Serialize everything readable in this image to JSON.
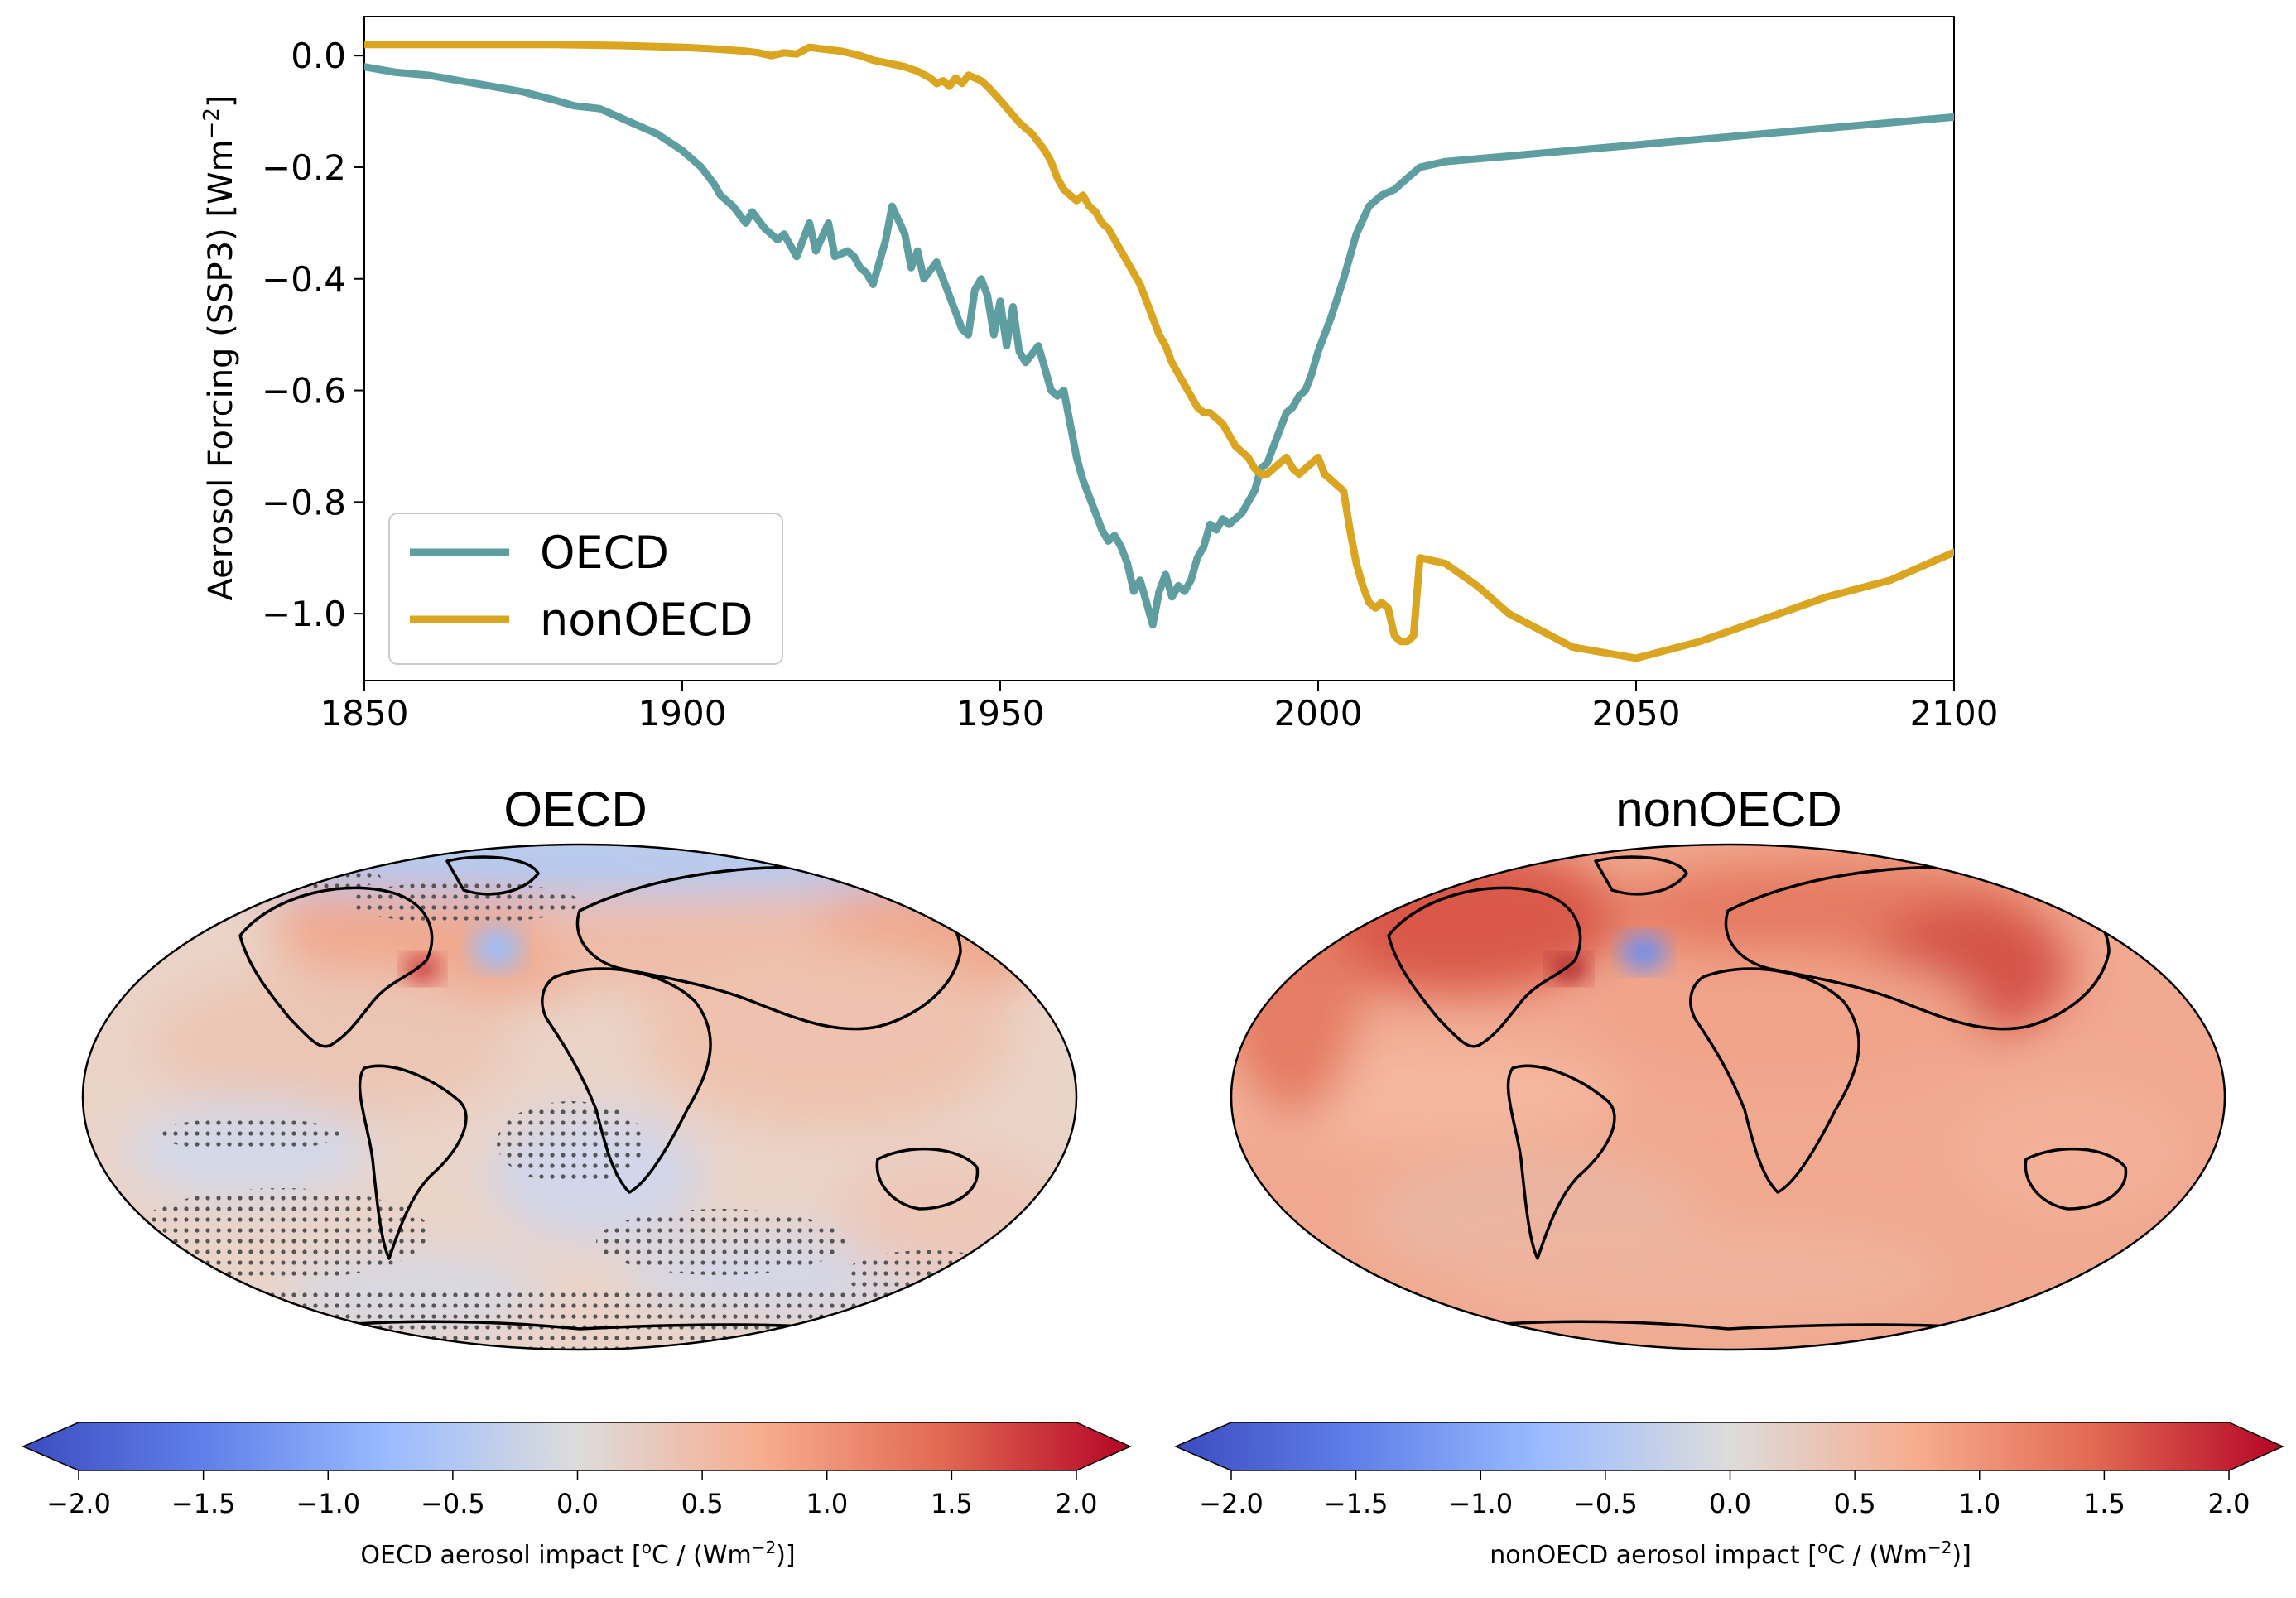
{
  "chart_data": [
    {
      "type": "line",
      "title": "",
      "xlabel": "",
      "ylabel": "Aerosol Forcing  (SSP3)  [Wm",
      "ylabel_sup": "−2",
      "ylabel_end": "]",
      "xlim": [
        1850,
        2100
      ],
      "ylim": [
        -1.12,
        0.07
      ],
      "x_ticks": [
        1850,
        1900,
        1950,
        2000,
        2050,
        2100
      ],
      "x_tick_labels": [
        "1850",
        "1900",
        "1950",
        "2000",
        "2050",
        "2100"
      ],
      "y_ticks": [
        0.0,
        -0.2,
        -0.4,
        -0.6,
        -0.8,
        -1.0
      ],
      "y_tick_labels": [
        "0.0",
        "−0.2",
        "−0.4",
        "−0.6",
        "−0.8",
        "−1.0"
      ],
      "grid": false,
      "legend": "lower-left",
      "series": [
        {
          "name": "OECD",
          "color": "#5f9ea0",
          "x": [
            1850,
            1855,
            1860,
            1865,
            1870,
            1875,
            1880,
            1883,
            1887,
            1890,
            1893,
            1896,
            1900,
            1903,
            1905,
            1906,
            1908,
            1910,
            1911,
            1913,
            1915,
            1916,
            1918,
            1919,
            1920,
            1921,
            1923,
            1924,
            1926,
            1927,
            1928,
            1929,
            1930,
            1932,
            1933,
            1935,
            1936,
            1937,
            1938,
            1940,
            1941,
            1943,
            1944,
            1945,
            1946,
            1947,
            1948,
            1949,
            1950,
            1951,
            1952,
            1953,
            1954,
            1956,
            1957,
            1958,
            1959,
            1960,
            1961,
            1962,
            1963,
            1964,
            1965,
            1966,
            1967,
            1968,
            1969,
            1970,
            1971,
            1972,
            1973,
            1974,
            1975,
            1976,
            1977,
            1978,
            1979,
            1980,
            1981,
            1982,
            1983,
            1984,
            1985,
            1986,
            1987,
            1988,
            1989,
            1990,
            1991,
            1992,
            1993,
            1994,
            1995,
            1996,
            1997,
            1998,
            1999,
            2000,
            2002,
            2004,
            2006,
            2008,
            2010,
            2012,
            2014,
            2016,
            2020,
            2030,
            2040,
            2050,
            2060,
            2070,
            2080,
            2090,
            2100
          ],
          "y": [
            -0.02,
            -0.03,
            -0.035,
            -0.045,
            -0.055,
            -0.065,
            -0.08,
            -0.09,
            -0.095,
            -0.11,
            -0.125,
            -0.14,
            -0.17,
            -0.2,
            -0.23,
            -0.25,
            -0.27,
            -0.3,
            -0.28,
            -0.31,
            -0.33,
            -0.32,
            -0.36,
            -0.33,
            -0.3,
            -0.35,
            -0.3,
            -0.36,
            -0.35,
            -0.36,
            -0.38,
            -0.39,
            -0.41,
            -0.33,
            -0.27,
            -0.32,
            -0.38,
            -0.35,
            -0.4,
            -0.37,
            -0.4,
            -0.46,
            -0.49,
            -0.5,
            -0.42,
            -0.4,
            -0.43,
            -0.5,
            -0.44,
            -0.52,
            -0.45,
            -0.53,
            -0.55,
            -0.52,
            -0.56,
            -0.6,
            -0.61,
            -0.6,
            -0.66,
            -0.72,
            -0.76,
            -0.79,
            -0.82,
            -0.85,
            -0.87,
            -0.86,
            -0.88,
            -0.91,
            -0.96,
            -0.94,
            -0.98,
            -1.02,
            -0.96,
            -0.93,
            -0.97,
            -0.95,
            -0.96,
            -0.94,
            -0.9,
            -0.88,
            -0.84,
            -0.85,
            -0.83,
            -0.84,
            -0.83,
            -0.82,
            -0.8,
            -0.78,
            -0.74,
            -0.73,
            -0.7,
            -0.67,
            -0.64,
            -0.63,
            -0.61,
            -0.6,
            -0.57,
            -0.53,
            -0.47,
            -0.4,
            -0.32,
            -0.27,
            -0.25,
            -0.24,
            -0.22,
            -0.2,
            -0.19,
            -0.18,
            -0.17,
            -0.16,
            -0.15,
            -0.14,
            -0.13,
            -0.12,
            -0.11
          ]
        },
        {
          "name": "nonOECD",
          "color": "#daa520",
          "x": [
            1850,
            1860,
            1870,
            1880,
            1890,
            1900,
            1905,
            1910,
            1912,
            1914,
            1916,
            1918,
            1920,
            1922,
            1925,
            1928,
            1930,
            1933,
            1935,
            1937,
            1939,
            1940,
            1941,
            1942,
            1943,
            1944,
            1945,
            1946,
            1947,
            1948,
            1950,
            1953,
            1955,
            1957,
            1958,
            1959,
            1960,
            1961,
            1962,
            1963,
            1964,
            1965,
            1966,
            1967,
            1968,
            1970,
            1972,
            1973,
            1974,
            1975,
            1976,
            1977,
            1978,
            1979,
            1980,
            1981,
            1982,
            1983,
            1984,
            1985,
            1986,
            1987,
            1988,
            1989,
            1990,
            1991,
            1992,
            1993,
            1994,
            1995,
            1996,
            1997,
            1998,
            1999,
            2000,
            2001,
            2002,
            2003,
            2004,
            2005,
            2006,
            2007,
            2008,
            2009,
            2010,
            2011,
            2012,
            2013,
            2014,
            2015,
            2016,
            2020,
            2025,
            2030,
            2040,
            2050,
            2060,
            2070,
            2080,
            2090,
            2100
          ],
          "y": [
            0.02,
            0.02,
            0.02,
            0.02,
            0.018,
            0.015,
            0.012,
            0.008,
            0.005,
            0.0,
            0.005,
            0.003,
            0.015,
            0.012,
            0.008,
            0.0,
            -0.008,
            -0.015,
            -0.02,
            -0.028,
            -0.04,
            -0.05,
            -0.045,
            -0.055,
            -0.04,
            -0.05,
            -0.035,
            -0.04,
            -0.045,
            -0.055,
            -0.08,
            -0.12,
            -0.14,
            -0.17,
            -0.19,
            -0.22,
            -0.24,
            -0.25,
            -0.26,
            -0.25,
            -0.27,
            -0.28,
            -0.3,
            -0.31,
            -0.33,
            -0.37,
            -0.41,
            -0.44,
            -0.47,
            -0.5,
            -0.52,
            -0.55,
            -0.57,
            -0.59,
            -0.61,
            -0.63,
            -0.64,
            -0.64,
            -0.65,
            -0.66,
            -0.68,
            -0.7,
            -0.71,
            -0.72,
            -0.74,
            -0.75,
            -0.75,
            -0.74,
            -0.73,
            -0.72,
            -0.74,
            -0.75,
            -0.74,
            -0.73,
            -0.72,
            -0.75,
            -0.76,
            -0.77,
            -0.78,
            -0.85,
            -0.91,
            -0.95,
            -0.98,
            -0.99,
            -0.98,
            -0.99,
            -1.04,
            -1.05,
            -1.05,
            -1.04,
            -0.9,
            -0.91,
            -0.95,
            -1.0,
            -1.06,
            -1.08,
            -1.05,
            -1.01,
            -0.97,
            -0.94,
            -0.89
          ]
        }
      ]
    },
    {
      "type": "heatmap",
      "title": "OECD",
      "colorbar_label": "OECD aerosol impact [",
      "colorbar_unit_sup": "o",
      "colorbar_unit_mid": "C / (Wm",
      "colorbar_unit_sup2": "−2",
      "colorbar_unit_end": ")]",
      "clim": [
        -2.0,
        2.0
      ],
      "colorbar_ticks": [
        "−2.0",
        "−1.5",
        "−1.0",
        "−0.5",
        "0.0",
        "0.5",
        "1.0",
        "1.5",
        "2.0"
      ],
      "colormap": [
        "#3b4cc0",
        "#7b9ff9",
        "#c0d4f5",
        "#dddcdc",
        "#f2cbb7",
        "#ee8468",
        "#b40426"
      ]
    },
    {
      "type": "heatmap",
      "title": "nonOECD",
      "colorbar_label": "nonOECD aerosol impact [",
      "colorbar_unit_sup": "o",
      "colorbar_unit_mid": "C / (Wm",
      "colorbar_unit_sup2": "−2",
      "colorbar_unit_end": ")]",
      "clim": [
        -2.0,
        2.0
      ],
      "colorbar_ticks": [
        "−2.0",
        "−1.5",
        "−1.0",
        "−0.5",
        "0.0",
        "0.5",
        "1.0",
        "1.5",
        "2.0"
      ],
      "colormap": [
        "#3b4cc0",
        "#7b9ff9",
        "#c0d4f5",
        "#dddcdc",
        "#f2cbb7",
        "#ee8468",
        "#b40426"
      ]
    }
  ]
}
